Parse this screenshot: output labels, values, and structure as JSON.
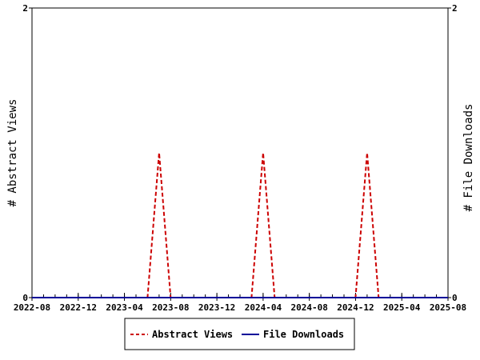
{
  "chart_data": {
    "type": "line",
    "ylabel_left": "# Abstract Views",
    "ylabel_right": "# File Downloads",
    "x_tick_labels": [
      "2022-08",
      "2022-12",
      "2023-04",
      "2023-08",
      "2023-12",
      "2024-04",
      "2024-08",
      "2024-12",
      "2025-04",
      "2025-08"
    ],
    "x_range": [
      "2022-08",
      "2025-08"
    ],
    "ylim_left": [
      0,
      2
    ],
    "ylim_right": [
      0,
      2
    ],
    "y_ticks_left": [
      "0",
      "2"
    ],
    "y_ticks_right": [
      "0",
      "2"
    ],
    "grid": false,
    "legend_position": "bottom-center",
    "series": [
      {
        "name": "Abstract Views",
        "color": "#cc0000",
        "style": "dashed",
        "axis": "left",
        "points": [
          {
            "x": "2022-08",
            "y": 0
          },
          {
            "x": "2023-06",
            "y": 0
          },
          {
            "x": "2023-07",
            "y": 1
          },
          {
            "x": "2023-08",
            "y": 0
          },
          {
            "x": "2024-03",
            "y": 0
          },
          {
            "x": "2024-04",
            "y": 1
          },
          {
            "x": "2024-05",
            "y": 0
          },
          {
            "x": "2024-12",
            "y": 0
          },
          {
            "x": "2025-01",
            "y": 1
          },
          {
            "x": "2025-02",
            "y": 0
          },
          {
            "x": "2025-08",
            "y": 0
          }
        ]
      },
      {
        "name": "File Downloads",
        "color": "#000099",
        "style": "solid",
        "axis": "right",
        "points": [
          {
            "x": "2022-08",
            "y": 0
          },
          {
            "x": "2025-08",
            "y": 0
          }
        ]
      }
    ]
  }
}
